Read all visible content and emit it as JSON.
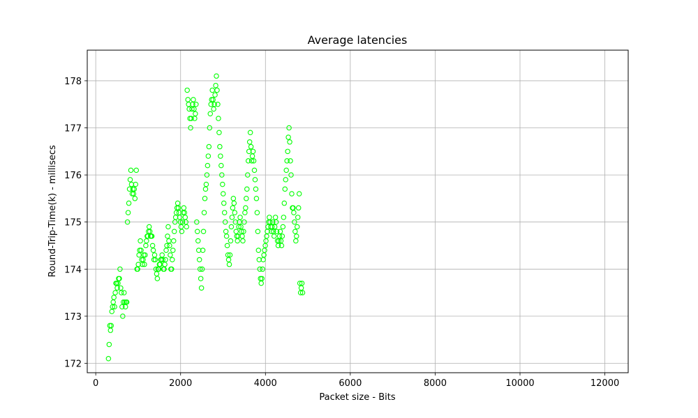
{
  "chart_data": {
    "type": "scatter",
    "title": "Average latencies",
    "xlabel": "Packet size - Bits",
    "ylabel": "Round-Trip-Time(k) - millisecs",
    "xlim": [
      -200,
      12550
    ],
    "ylim": [
      171.8,
      178.65
    ],
    "xticks": [
      0,
      2000,
      4000,
      6000,
      8000,
      10000,
      12000
    ],
    "yticks": [
      172,
      173,
      174,
      175,
      176,
      177,
      178
    ],
    "grid": true,
    "marker_color": "#00ff00",
    "x_start": 300,
    "x_step": 16,
    "y": [
      172.1,
      172.4,
      172.8,
      172.7,
      172.8,
      173.1,
      173.2,
      173.3,
      173.4,
      173.2,
      173.5,
      173.7,
      173.7,
      173.6,
      173.7,
      173.8,
      173.8,
      174.0,
      173.6,
      173.5,
      173.2,
      173.0,
      173.3,
      173.5,
      173.3,
      173.2,
      173.3,
      173.3,
      175.0,
      175.2,
      175.4,
      175.7,
      175.9,
      176.1,
      175.8,
      175.6,
      175.7,
      175.6,
      175.7,
      175.5,
      175.8,
      176.1,
      174.0,
      174.0,
      174.1,
      174.3,
      174.4,
      174.6,
      174.4,
      174.2,
      174.1,
      174.2,
      174.3,
      174.1,
      174.3,
      174.5,
      174.6,
      174.7,
      174.7,
      174.8,
      174.9,
      174.8,
      174.7,
      174.7,
      174.7,
      174.5,
      174.4,
      174.2,
      174.3,
      174.2,
      174.0,
      173.9,
      173.8,
      174.0,
      174.0,
      174.1,
      174.1,
      174.2,
      174.2,
      174.3,
      174.2,
      174.0,
      174.0,
      174.1,
      174.2,
      174.4,
      174.5,
      174.7,
      174.9,
      174.6,
      174.5,
      174.3,
      174.0,
      174.0,
      174.2,
      174.4,
      174.6,
      174.8,
      175.0,
      175.1,
      175.2,
      175.3,
      175.4,
      175.3,
      175.2,
      175.1,
      175.0,
      174.9,
      174.8,
      175.0,
      175.2,
      175.3,
      175.2,
      175.1,
      175.0,
      174.9,
      177.8,
      177.6,
      177.5,
      177.4,
      177.2,
      177.0,
      177.2,
      177.4,
      177.5,
      177.6,
      177.4,
      177.2,
      177.3,
      177.5,
      175.0,
      174.8,
      174.6,
      174.4,
      174.2,
      174.0,
      173.8,
      173.6,
      174.0,
      174.4,
      174.8,
      175.2,
      175.5,
      175.7,
      175.8,
      176.0,
      176.2,
      176.4,
      176.6,
      177.0,
      177.3,
      177.5,
      177.6,
      177.8,
      177.6,
      177.4,
      177.5,
      177.7,
      177.9,
      178.1,
      177.8,
      177.5,
      177.2,
      176.9,
      176.6,
      176.4,
      176.2,
      176.0,
      175.8,
      175.6,
      175.4,
      175.2,
      175.0,
      174.8,
      174.7,
      174.5,
      174.3,
      174.2,
      174.1,
      174.3,
      174.6,
      174.9,
      175.1,
      175.3,
      175.5,
      175.4,
      175.2,
      175.0,
      174.8,
      174.7,
      174.6,
      174.7,
      174.9,
      175.0,
      175.1,
      174.9,
      174.8,
      174.7,
      174.6,
      174.8,
      175.0,
      175.2,
      175.3,
      175.5,
      175.7,
      176.0,
      176.3,
      176.5,
      176.7,
      176.9,
      176.6,
      176.3,
      176.4,
      176.5,
      176.3,
      176.1,
      175.9,
      175.7,
      175.5,
      175.2,
      174.8,
      174.4,
      174.2,
      174.0,
      173.8,
      173.7,
      173.8,
      174.0,
      174.2,
      174.3,
      174.4,
      174.5,
      174.6,
      174.7,
      174.8,
      174.9,
      175.0,
      175.1,
      175.0,
      174.9,
      174.8,
      174.9,
      175.0,
      174.8,
      174.7,
      174.9,
      175.1,
      175.0,
      174.8,
      174.6,
      174.5,
      174.6,
      174.7,
      174.8,
      174.6,
      174.5,
      174.7,
      174.9,
      175.1,
      175.4,
      175.7,
      175.9,
      176.1,
      176.3,
      176.5,
      176.8,
      177.0,
      176.7,
      176.3,
      176.0,
      175.6,
      175.3,
      175.3,
      175.2,
      175.0,
      174.8,
      174.6,
      174.7,
      174.9,
      175.1,
      175.3,
      175.6,
      173.7,
      173.5,
      173.6,
      173.7,
      173.5
    ]
  }
}
